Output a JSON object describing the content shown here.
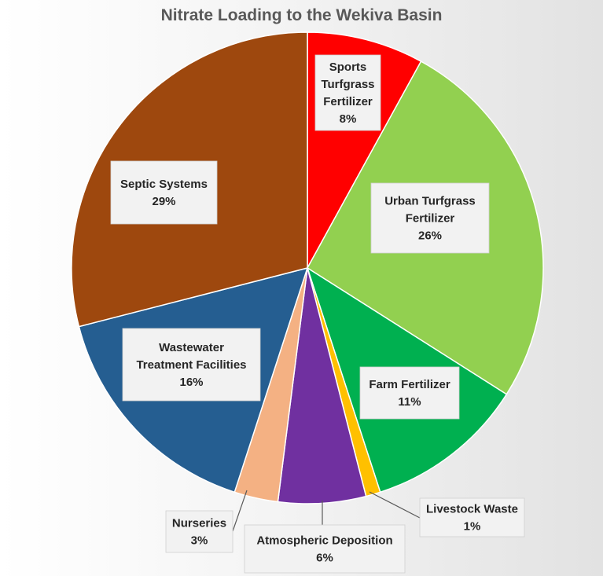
{
  "chart_data": {
    "type": "pie",
    "title": "Nitrate Loading to the Wekiva Basin",
    "slices": [
      {
        "label": [
          "Sports",
          "Turfgrass",
          "Fertilizer"
        ],
        "percent_label": "8%",
        "value": 8,
        "color": "#ff0000"
      },
      {
        "label": [
          "Urban Turfgrass",
          "Fertilizer"
        ],
        "percent_label": "26%",
        "value": 26,
        "color": "#92d050"
      },
      {
        "label": [
          "Farm Fertilizer"
        ],
        "percent_label": "11%",
        "value": 11,
        "color": "#00b050"
      },
      {
        "label": [
          "Livestock Waste"
        ],
        "percent_label": "1%",
        "value": 1,
        "color": "#ffc000"
      },
      {
        "label": [
          "Atmospheric Deposition"
        ],
        "percent_label": "6%",
        "value": 6,
        "color": "#7030a0"
      },
      {
        "label": [
          "Nurseries"
        ],
        "percent_label": "3%",
        "value": 3,
        "color": "#f4b183"
      },
      {
        "label": [
          "Wastewater",
          "Treatment Facilities"
        ],
        "percent_label": "16%",
        "value": 16,
        "color": "#255e91"
      },
      {
        "label": [
          "Septic Systems"
        ],
        "percent_label": "29%",
        "value": 29,
        "color": "#9e480e"
      }
    ]
  }
}
